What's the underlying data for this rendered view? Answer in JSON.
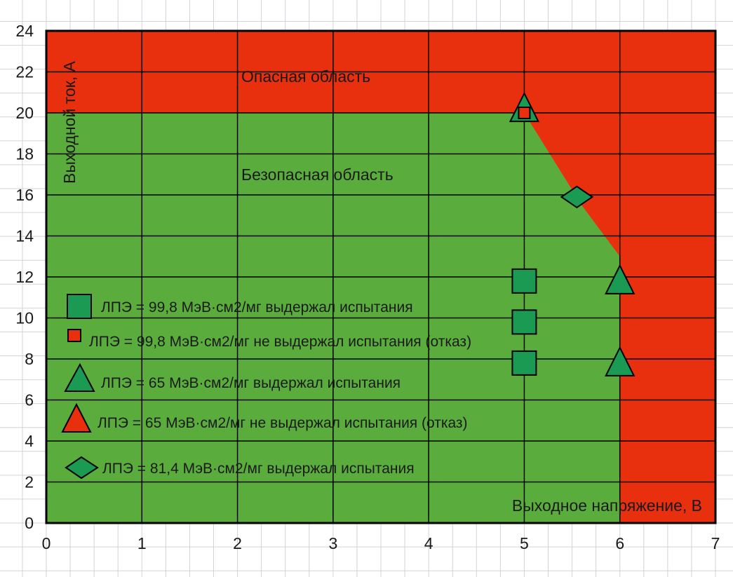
{
  "colors": {
    "safe": "#5aad3c",
    "danger": "#e8300f",
    "marker_green": "#1a9a52",
    "marker_red": "#e8300f",
    "grid": "#000000",
    "paper_grid": "#cfd4da"
  },
  "chart_data": {
    "type": "area",
    "xlim": [
      0,
      7
    ],
    "ylim": [
      0,
      24
    ],
    "x_ticks": [
      "0",
      "1",
      "2",
      "3",
      "4",
      "5",
      "6",
      "7"
    ],
    "y_ticks": [
      "0",
      "2",
      "4",
      "6",
      "8",
      "10",
      "12",
      "14",
      "16",
      "18",
      "20",
      "22",
      "24"
    ],
    "xlabel": "Выходное напряжение, В",
    "ylabel": "Выходной ток, А",
    "region_labels": {
      "danger": "Опасная область",
      "safe": "Безопасная область"
    },
    "safe_boundary": [
      [
        0,
        20
      ],
      [
        5,
        20
      ],
      [
        5.6,
        15.5
      ],
      [
        6,
        13
      ],
      [
        6,
        0
      ]
    ],
    "grid": true,
    "legend_position": "left",
    "series": [
      {
        "name": "ЛПЭ = 99,8 МэВ·см2/мг выдержал испытания",
        "marker": "square",
        "color": "green",
        "points": [
          [
            5,
            11.8
          ],
          [
            5,
            9.8
          ],
          [
            5,
            7.8
          ]
        ]
      },
      {
        "name": "ЛПЭ = 99,8 МэВ·см2/мг не выдержал испытания (отказ)",
        "marker": "square-small",
        "color": "red",
        "points": [
          [
            5,
            20
          ]
        ]
      },
      {
        "name": "ЛПЭ = 65 МэВ·см2/мг выдержал испытания",
        "marker": "triangle",
        "color": "green",
        "points": [
          [
            5,
            20.2
          ],
          [
            6,
            11.8
          ],
          [
            6,
            7.8
          ]
        ]
      },
      {
        "name": "ЛПЭ = 65 МэВ·см2/мг не выдержал испытания (отказ)",
        "marker": "triangle",
        "color": "red",
        "points": []
      },
      {
        "name": "ЛПЭ = 81,4 МэВ·см2/мг выдержал испытания",
        "marker": "diamond",
        "color": "green",
        "points": [
          [
            5.55,
            15.9
          ]
        ]
      }
    ]
  }
}
